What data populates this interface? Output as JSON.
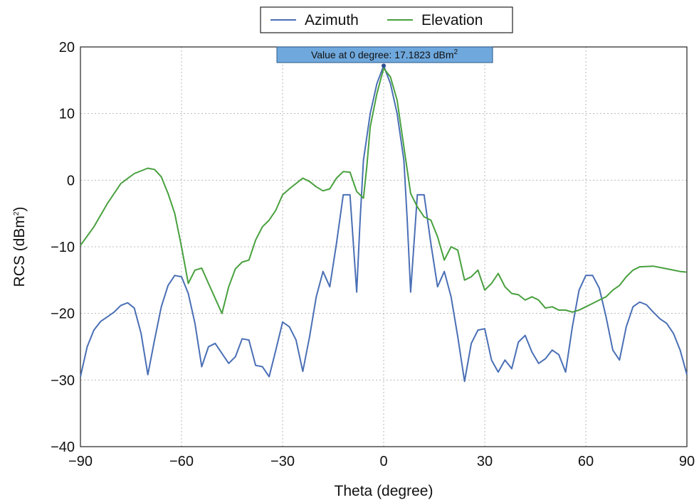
{
  "chart_data": {
    "type": "line",
    "xlabel": "Theta (degree)",
    "ylabel": "RCS (dBm",
    "ylabel_sup": "2",
    "ylabel_close": ")",
    "xlim": [
      -90,
      90
    ],
    "ylim": [
      -40,
      20
    ],
    "xticks": [
      -90,
      -60,
      -30,
      0,
      30,
      60,
      90
    ],
    "xtick_labels": [
      "−90",
      "−60",
      "−30",
      "0",
      "30",
      "60",
      "90"
    ],
    "yticks": [
      -40,
      -30,
      -20,
      -10,
      0,
      10,
      20
    ],
    "ytick_labels": [
      "−40",
      "−30",
      "−20",
      "−10",
      "0",
      "10",
      "20"
    ],
    "grid": true,
    "legend_position": "top-center",
    "annotation": {
      "text": "Value at 0 degree: 17.1823 dBm",
      "sup": "2",
      "x": 0,
      "y": 17.1823,
      "bg_color": "#6fa8dc"
    },
    "series": [
      {
        "name": "Azimuth",
        "color": "#4a6fb5",
        "points": [
          [
            -90,
            -29.5
          ],
          [
            -88,
            -25
          ],
          [
            -86,
            -22.5
          ],
          [
            -84,
            -21.2
          ],
          [
            -82,
            -20.5
          ],
          [
            -80,
            -19.8
          ],
          [
            -78,
            -18.8
          ],
          [
            -76,
            -18.4
          ],
          [
            -74,
            -19.2
          ],
          [
            -72,
            -23
          ],
          [
            -70,
            -29.2
          ],
          [
            -68,
            -24
          ],
          [
            -66,
            -19
          ],
          [
            -64,
            -15.8
          ],
          [
            -62,
            -14.3
          ],
          [
            -60,
            -14.5
          ],
          [
            -58,
            -17
          ],
          [
            -56,
            -21.5
          ],
          [
            -54,
            -28
          ],
          [
            -52,
            -25
          ],
          [
            -50,
            -24.5
          ],
          [
            -48,
            -26
          ],
          [
            -46,
            -27.5
          ],
          [
            -44,
            -26.5
          ],
          [
            -42,
            -23.8
          ],
          [
            -40,
            -24
          ],
          [
            -38,
            -27.8
          ],
          [
            -36,
            -28
          ],
          [
            -34,
            -29.5
          ],
          [
            -32,
            -25.5
          ],
          [
            -30,
            -21.3
          ],
          [
            -28,
            -22
          ],
          [
            -26,
            -24
          ],
          [
            -24,
            -28.7
          ],
          [
            -22,
            -23.5
          ],
          [
            -20,
            -17.5
          ],
          [
            -18,
            -13.7
          ],
          [
            -16,
            -16
          ],
          [
            -14,
            -9.5
          ],
          [
            -12,
            -2.2
          ],
          [
            -10,
            -2.2
          ],
          [
            -8,
            -16.8
          ],
          [
            -7,
            -6
          ],
          [
            -6,
            3
          ],
          [
            -4,
            10
          ],
          [
            -2,
            14.5
          ],
          [
            0,
            17.18
          ],
          [
            2,
            14.5
          ],
          [
            4,
            10
          ],
          [
            6,
            3
          ],
          [
            7,
            -6
          ],
          [
            8,
            -16.8
          ],
          [
            10,
            -2.2
          ],
          [
            12,
            -2.2
          ],
          [
            14,
            -9.5
          ],
          [
            16,
            -16
          ],
          [
            18,
            -13.7
          ],
          [
            20,
            -17.5
          ],
          [
            22,
            -23.5
          ],
          [
            24,
            -30.2
          ],
          [
            26,
            -24.5
          ],
          [
            28,
            -22.5
          ],
          [
            30,
            -22.3
          ],
          [
            32,
            -27
          ],
          [
            34,
            -28.8
          ],
          [
            36,
            -27
          ],
          [
            38,
            -28.3
          ],
          [
            40,
            -24.3
          ],
          [
            42,
            -23.3
          ],
          [
            44,
            -25.8
          ],
          [
            46,
            -27.5
          ],
          [
            48,
            -26.8
          ],
          [
            50,
            -25.5
          ],
          [
            52,
            -26.2
          ],
          [
            54,
            -28.8
          ],
          [
            56,
            -22
          ],
          [
            58,
            -16.5
          ],
          [
            60,
            -14.3
          ],
          [
            62,
            -14.3
          ],
          [
            64,
            -16.2
          ],
          [
            66,
            -20.5
          ],
          [
            68,
            -25.5
          ],
          [
            70,
            -27
          ],
          [
            72,
            -22
          ],
          [
            74,
            -19
          ],
          [
            76,
            -18.3
          ],
          [
            78,
            -18.7
          ],
          [
            80,
            -19.8
          ],
          [
            82,
            -20.8
          ],
          [
            84,
            -21.5
          ],
          [
            86,
            -23
          ],
          [
            88,
            -25.5
          ],
          [
            90,
            -29.2
          ]
        ]
      },
      {
        "name": "Elevation",
        "color": "#48a03e",
        "points": [
          [
            -90,
            -9.8
          ],
          [
            -86,
            -7
          ],
          [
            -82,
            -3.5
          ],
          [
            -78,
            -0.5
          ],
          [
            -74,
            1
          ],
          [
            -70,
            1.8
          ],
          [
            -68,
            1.6
          ],
          [
            -66,
            0.5
          ],
          [
            -64,
            -2
          ],
          [
            -62,
            -5
          ],
          [
            -60,
            -10
          ],
          [
            -58,
            -15.5
          ],
          [
            -56,
            -13.5
          ],
          [
            -54,
            -13.2
          ],
          [
            -52,
            -15.5
          ],
          [
            -48,
            -20
          ],
          [
            -46,
            -16
          ],
          [
            -44,
            -13.3
          ],
          [
            -42,
            -12.3
          ],
          [
            -40,
            -12
          ],
          [
            -38,
            -9
          ],
          [
            -36,
            -7
          ],
          [
            -34,
            -6
          ],
          [
            -32,
            -4.5
          ],
          [
            -30,
            -2.2
          ],
          [
            -28,
            -1.3
          ],
          [
            -26,
            -0.5
          ],
          [
            -24,
            0.3
          ],
          [
            -22,
            -0.2
          ],
          [
            -20,
            -1
          ],
          [
            -18,
            -1.6
          ],
          [
            -16,
            -1.3
          ],
          [
            -14,
            0.3
          ],
          [
            -12,
            1.3
          ],
          [
            -10,
            1.2
          ],
          [
            -8,
            -1.7
          ],
          [
            -6,
            -2.7
          ],
          [
            -5,
            2
          ],
          [
            -4,
            8
          ],
          [
            -2,
            13
          ],
          [
            0,
            16.8
          ],
          [
            2,
            15.5
          ],
          [
            4,
            12
          ],
          [
            6,
            5
          ],
          [
            8,
            -2
          ],
          [
            10,
            -4
          ],
          [
            12,
            -5.5
          ],
          [
            14,
            -6
          ],
          [
            16,
            -8.5
          ],
          [
            18,
            -12
          ],
          [
            20,
            -10
          ],
          [
            22,
            -10.5
          ],
          [
            24,
            -15
          ],
          [
            26,
            -14.5
          ],
          [
            28,
            -13.5
          ],
          [
            30,
            -16.5
          ],
          [
            32,
            -15.5
          ],
          [
            34,
            -14
          ],
          [
            36,
            -16
          ],
          [
            38,
            -17
          ],
          [
            40,
            -17.2
          ],
          [
            42,
            -18
          ],
          [
            44,
            -17.5
          ],
          [
            46,
            -18
          ],
          [
            48,
            -19.2
          ],
          [
            50,
            -19
          ],
          [
            52,
            -19.5
          ],
          [
            54,
            -19.5
          ],
          [
            56,
            -19.8
          ],
          [
            58,
            -19.5
          ],
          [
            60,
            -19
          ],
          [
            62,
            -18.5
          ],
          [
            64,
            -18
          ],
          [
            66,
            -17.5
          ],
          [
            68,
            -16.5
          ],
          [
            70,
            -15.8
          ],
          [
            72,
            -14.5
          ],
          [
            74,
            -13.5
          ],
          [
            76,
            -13
          ],
          [
            80,
            -12.9
          ],
          [
            84,
            -13.3
          ],
          [
            88,
            -13.7
          ],
          [
            90,
            -13.8
          ]
        ]
      }
    ]
  }
}
